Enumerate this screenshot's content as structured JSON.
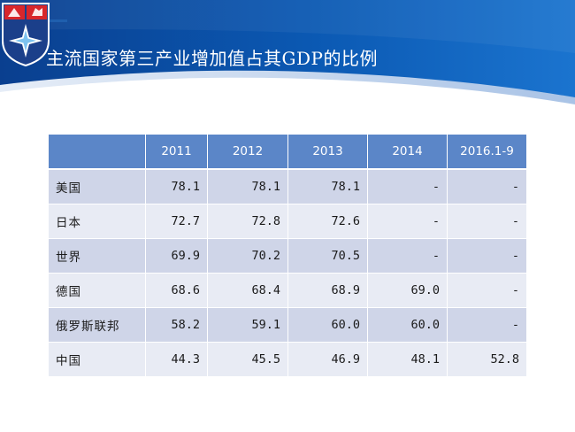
{
  "slide": {
    "title": "主流国家第三产业增加值占其GDP的比例"
  },
  "colors": {
    "header_blue": "#0b58b0",
    "table_header": "#5b86c8",
    "row_odd": "#cfd5e8",
    "row_even": "#e8ebf4",
    "logo_red": "#d8262b",
    "logo_navy": "#1b3f8a"
  },
  "logo": {
    "icon": "compass-star-shield-icon"
  },
  "table": {
    "headers": [
      "",
      "2011",
      "2012",
      "2013",
      "2014",
      "2016.1-9"
    ],
    "rows": [
      {
        "name": "美国",
        "values": [
          "78.1",
          "78.1",
          "78.1",
          "-",
          "-"
        ]
      },
      {
        "name": "日本",
        "values": [
          "72.7",
          "72.8",
          "72.6",
          "-",
          "-"
        ]
      },
      {
        "name": "世界",
        "values": [
          "69.9",
          "70.2",
          "70.5",
          "-",
          "-"
        ]
      },
      {
        "name": "德国",
        "values": [
          "68.6",
          "68.4",
          "68.9",
          "69.0",
          "-"
        ]
      },
      {
        "name": "俄罗斯联邦",
        "values": [
          "58.2",
          "59.1",
          "60.0",
          "60.0",
          "-"
        ]
      },
      {
        "name": "中国",
        "values": [
          "44.3",
          "45.5",
          "46.9",
          "48.1",
          "52.8"
        ]
      }
    ]
  }
}
